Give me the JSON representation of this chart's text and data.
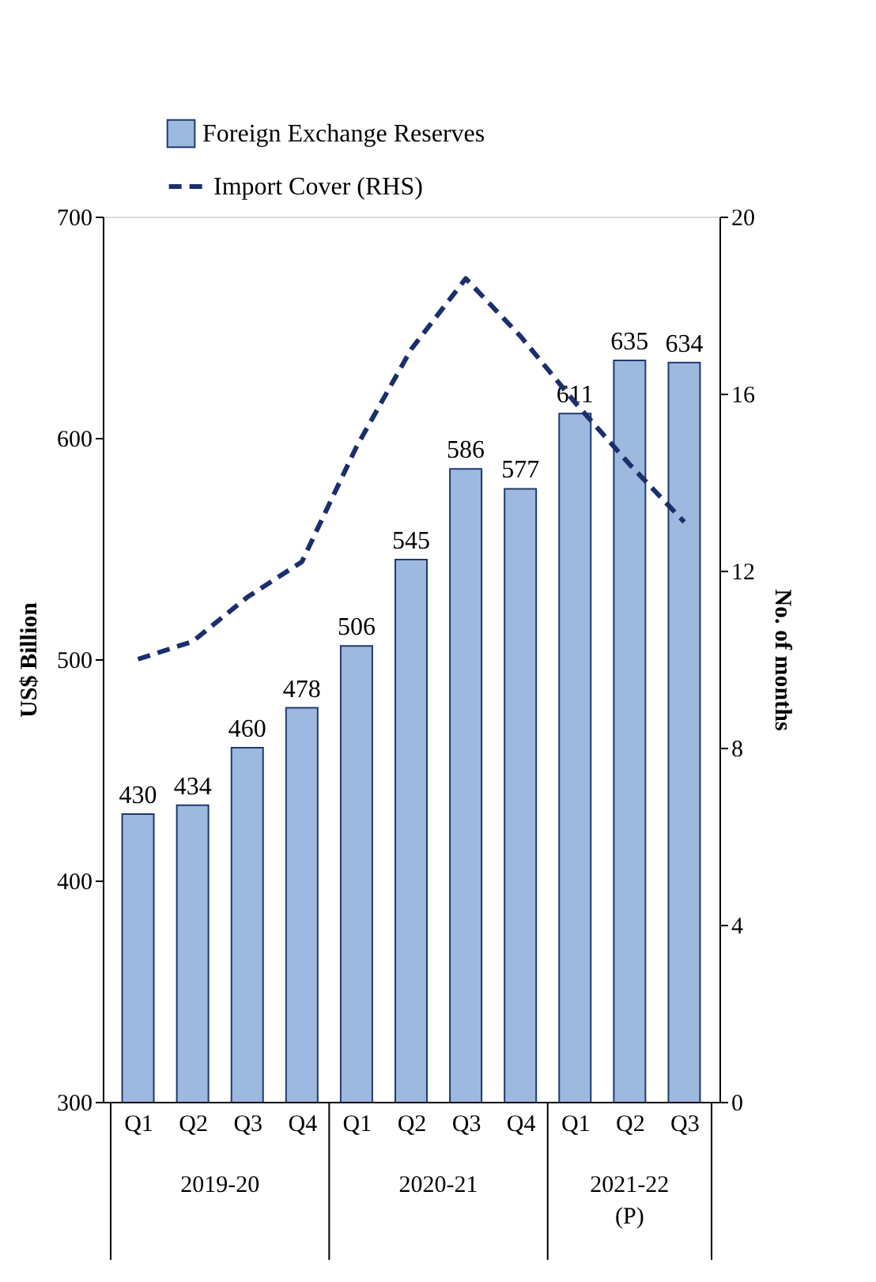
{
  "chart_data": {
    "type": "bar",
    "categories": [
      "Q1",
      "Q2",
      "Q3",
      "Q4",
      "Q1",
      "Q2",
      "Q3",
      "Q4",
      "Q1",
      "Q2",
      "Q3"
    ],
    "series": [
      {
        "name": "Foreign Exchange Reserves",
        "color": "#9db9df",
        "values": [
          430,
          434,
          460,
          478,
          506,
          545,
          586,
          577,
          611,
          635,
          634
        ],
        "value_labels": [
          "430",
          "434",
          "460",
          "478",
          "506",
          "545",
          "586",
          "577",
          "611",
          "635",
          "634"
        ]
      },
      {
        "name": "Import Cover (RHS)",
        "type": "line",
        "axis": "y2",
        "color": "#1a2f6b",
        "line_style": "dashed",
        "values": [
          10.0,
          10.4,
          11.4,
          12.2,
          14.8,
          17.0,
          18.6,
          17.3,
          15.8,
          14.4,
          13.1
        ]
      }
    ],
    "ylabel": "US$ Billion",
    "y2label": "No. of months",
    "ylim": [
      300,
      700
    ],
    "yticks": [
      300,
      400,
      500,
      600,
      700
    ],
    "y2lim": [
      0,
      20
    ],
    "y2ticks": [
      0,
      4,
      8,
      12,
      16,
      20
    ],
    "annotations": [
      "2019-20",
      "2020-21",
      "2021-22 (P)"
    ],
    "grid": false,
    "legend": "top"
  }
}
